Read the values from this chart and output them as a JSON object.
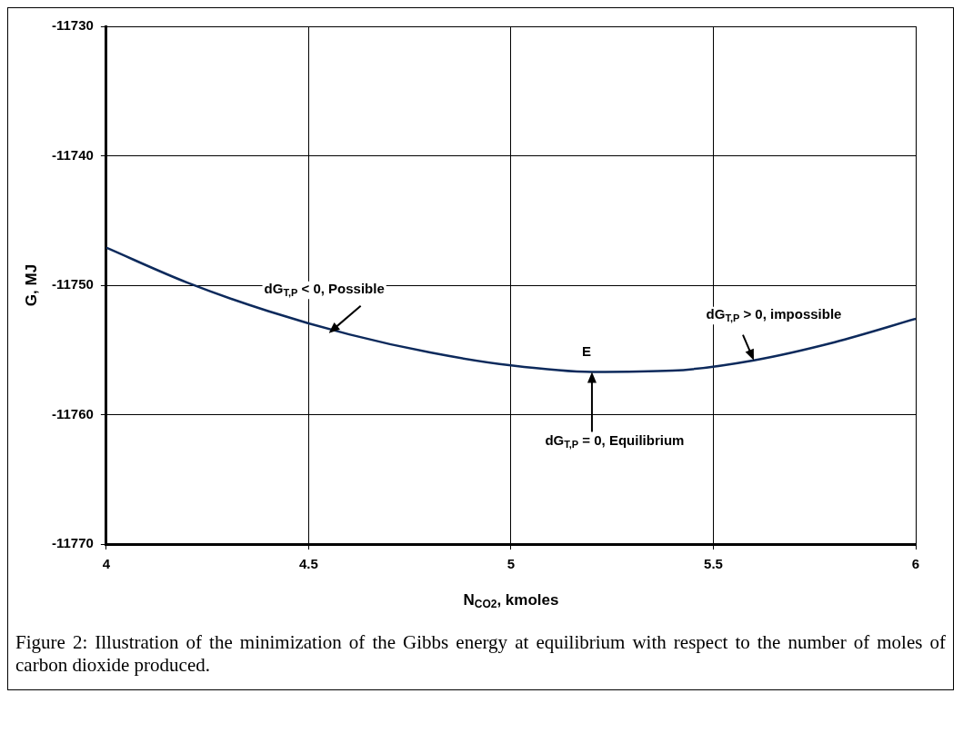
{
  "chart_data": {
    "type": "line",
    "xlabel": "N$_{CO2}$, kmoles",
    "ylabel": "G, MJ",
    "x": [
      4,
      4.2,
      4.4,
      4.6,
      4.8,
      5.0,
      5.2,
      5.4,
      5.6,
      5.8,
      6.0
    ],
    "series": [
      {
        "color": "#0d2a5c",
        "values": [
          -11747.1,
          -11749.8,
          -11752.0,
          -11753.8,
          -11755.2,
          -11756.2,
          -11756.7,
          -11756.6,
          -11755.8,
          -11754.4,
          -11752.6
        ]
      }
    ],
    "xlim": [
      4,
      6
    ],
    "xticks": [
      4,
      4.5,
      5,
      5.5,
      6
    ],
    "ylim": [
      -11770,
      -11730
    ],
    "yticks": [
      -11770,
      -11760,
      -11750,
      -11740,
      -11730
    ],
    "grid": true,
    "legend": false,
    "marker": "none",
    "line_style": "solid",
    "annotations": [
      {
        "text": "dG$_{T,P}$ < 0, Possible",
        "x": 4.55,
        "y": -11753.7
      },
      {
        "text": "E",
        "x": 5.2,
        "y": -11756.7
      },
      {
        "text": "dG$_{T,P}$ = 0, Equilibrium",
        "x": 5.2,
        "y": -11756.7
      },
      {
        "text": "dG$_{T,P}$ > 0, impossible",
        "x": 5.6,
        "y": -11755.8
      },
      "Figure 2: Illustration of the minimization of the Gibbs energy at equilibrium with respect to the number of moles of carbon dioxide produced."
    ]
  }
}
